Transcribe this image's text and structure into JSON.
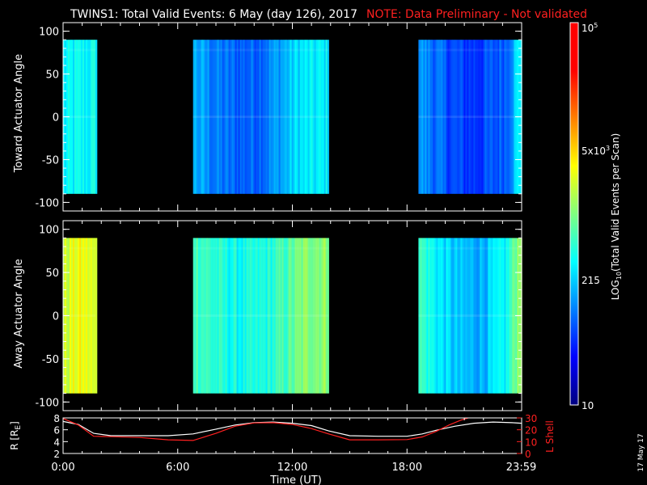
{
  "title": "TWINS1: Total Valid Events:  6 May (day 126), 2017",
  "note": "NOTE: Data Preliminary - Not validated",
  "stamp": "17 May 17",
  "chart_data": [
    {
      "type": "heatmap",
      "ylabel": "Toward Actuator Angle",
      "ylim": [
        -110,
        110
      ],
      "yticks": [
        "100",
        "50",
        "0",
        "-50",
        "-100"
      ],
      "ytick_values": [
        100,
        50,
        0,
        -50,
        -100
      ],
      "angle_range": [
        -90,
        90
      ],
      "data_intervals_hours": [
        [
          0.0,
          1.7
        ],
        [
          6.8,
          13.9
        ],
        [
          18.6,
          23.99
        ]
      ]
    },
    {
      "type": "heatmap",
      "ylabel": "Away Actuator Angle",
      "ylim": [
        -110,
        110
      ],
      "yticks": [
        "100",
        "50",
        "0",
        "-50",
        "-100"
      ],
      "ytick_values": [
        100,
        50,
        0,
        -50,
        -100
      ],
      "angle_range": [
        -90,
        90
      ],
      "data_intervals_hours": [
        [
          0.0,
          1.7
        ],
        [
          6.8,
          13.9
        ],
        [
          18.6,
          23.99
        ]
      ]
    },
    {
      "type": "line",
      "ylabel": "R [RE]",
      "ylabel_right": "L Shell",
      "ylim": [
        2,
        8
      ],
      "yticks_left": [
        "8",
        "6",
        "4",
        "2"
      ],
      "ytick_left_values": [
        8,
        6,
        4,
        2
      ],
      "yticks_right": [
        "30",
        "20",
        "10",
        "0"
      ],
      "ytick_right_values": [
        30,
        20,
        10,
        0
      ],
      "xlabel": "Time (UT)",
      "xticks": [
        "0:00",
        "6:00",
        "12:00",
        "18:00",
        "23:59"
      ],
      "xtick_values": [
        0,
        6,
        12,
        18,
        23.98
      ],
      "xlim": [
        0,
        24
      ],
      "series": [
        {
          "name": "R",
          "color": "#ffffff",
          "x": [
            0,
            0.8,
            1.6,
            2.5,
            4,
            5.5,
            6.8,
            8,
            9,
            10,
            11,
            12,
            13,
            13.9,
            15,
            16.5,
            18,
            18.8,
            19.5,
            20.5,
            21.5,
            22.5,
            23.5,
            24
          ],
          "y": [
            7.4,
            6.9,
            5.4,
            5.0,
            5.0,
            5.0,
            5.3,
            6.1,
            6.8,
            7.2,
            7.3,
            7.1,
            6.7,
            5.8,
            5.0,
            4.9,
            4.9,
            5.3,
            5.9,
            6.6,
            7.1,
            7.3,
            7.2,
            7.1
          ]
        },
        {
          "name": "L Shell",
          "color": "#ff2020",
          "x": [
            0,
            0.8,
            1.6,
            2.5,
            4,
            5.5,
            6.8,
            8,
            9,
            10,
            11,
            12,
            13,
            13.9,
            15,
            16.5,
            18,
            18.8,
            19.5,
            20.2,
            20.8,
            21.2
          ],
          "y": [
            29.5,
            24,
            14.5,
            14.2,
            13.5,
            11.5,
            11.0,
            17,
            23,
            25.8,
            26,
            24.5,
            21,
            16.5,
            11.5,
            11.5,
            11.7,
            14,
            18.5,
            24,
            28,
            30
          ]
        }
      ]
    }
  ],
  "colorbar": {
    "label": "LOG10(Total Valid Events per Scan)",
    "ticks": [
      "10^5",
      "5x10^3",
      "215",
      "10"
    ],
    "tick_values": [
      5.0,
      3.699,
      2.332,
      1.0
    ],
    "range": [
      1.0,
      5.0
    ]
  }
}
